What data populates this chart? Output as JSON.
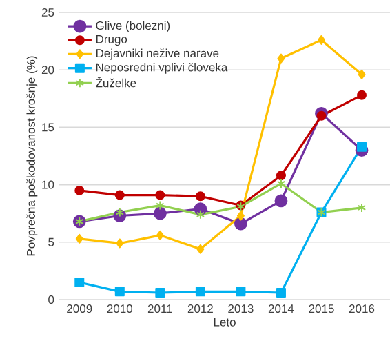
{
  "chart_data": {
    "type": "line",
    "xlabel": "Leto",
    "ylabel": "Povprečna poškodovanost  krošnje (%)",
    "x": [
      2009,
      2010,
      2011,
      2012,
      2013,
      2014,
      2015,
      2016
    ],
    "series": [
      {
        "name": "Glive (bolezni)",
        "color": "#7030a0",
        "marker": "circle",
        "values": [
          6.8,
          7.3,
          7.5,
          7.9,
          6.6,
          8.6,
          16.2,
          13.0
        ]
      },
      {
        "name": "Drugo",
        "color": "#c00000",
        "marker": "circle",
        "values": [
          9.5,
          9.1,
          9.1,
          9.0,
          8.2,
          10.8,
          16.0,
          17.8
        ]
      },
      {
        "name": "Dejavniki nežive narave",
        "color": "#ffc000",
        "marker": "diamond",
        "values": [
          5.3,
          4.9,
          5.6,
          4.4,
          7.3,
          21.0,
          22.6,
          19.6
        ]
      },
      {
        "name": "Neposredni vplivi človeka",
        "color": "#00b0f0",
        "marker": "square",
        "values": [
          1.5,
          0.7,
          0.6,
          0.7,
          0.7,
          0.6,
          7.6,
          13.3
        ]
      },
      {
        "name": "Žuželke",
        "color": "#92d050",
        "marker": "cross",
        "values": [
          6.8,
          7.6,
          8.2,
          7.4,
          8.1,
          10.1,
          7.6,
          8.0
        ]
      }
    ],
    "xlim": [
      2008.5,
      2016.7
    ],
    "ylim": [
      0,
      25
    ],
    "xticks": [
      2009,
      2010,
      2011,
      2012,
      2013,
      2014,
      2015,
      2016
    ],
    "yticks": [
      0,
      5,
      10,
      15,
      20,
      25
    ],
    "grid": "y",
    "legend": "top left",
    "line_style": "solid"
  }
}
